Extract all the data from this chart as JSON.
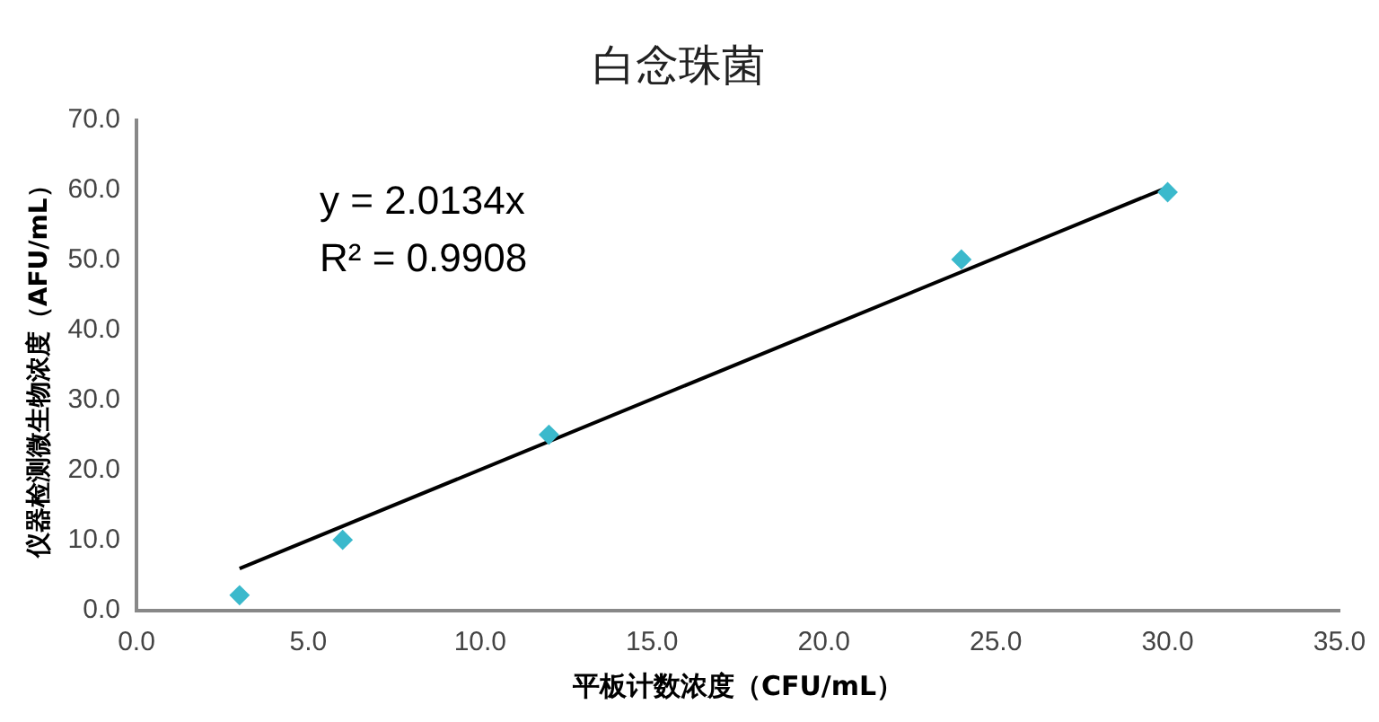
{
  "chart_data": {
    "type": "scatter",
    "title": "白念珠菌",
    "xlabel": "平板计数浓度（CFU/mL）",
    "ylabel": "仪器检测微生物浓度（AFU/mL）",
    "xlim": [
      0,
      35
    ],
    "xticks": [
      {
        "value": 0,
        "label": "0.0"
      },
      {
        "value": 5,
        "label": "5.0"
      },
      {
        "value": 10,
        "label": "10.0"
      },
      {
        "value": 15,
        "label": "15.0"
      },
      {
        "value": 20,
        "label": "20.0"
      },
      {
        "value": 25,
        "label": "25.0"
      },
      {
        "value": 30,
        "label": "30.0"
      },
      {
        "value": 35,
        "label": "35.0"
      }
    ],
    "ylim": [
      0,
      70
    ],
    "yticks": [
      {
        "value": 0,
        "label": "0.0"
      },
      {
        "value": 10,
        "label": "10.0"
      },
      {
        "value": 20,
        "label": "20.0"
      },
      {
        "value": 30,
        "label": "30.0"
      },
      {
        "value": 40,
        "label": "40.0"
      },
      {
        "value": 50,
        "label": "50.0"
      },
      {
        "value": 60,
        "label": "60.0"
      },
      {
        "value": 70,
        "label": "70.0"
      }
    ],
    "grid": false,
    "legend": false,
    "marker": "diamond",
    "series": [
      {
        "color": "#3bb9cc",
        "x": [
          3,
          6,
          12,
          24,
          30
        ],
        "values": [
          2.2,
          10.1,
          25.1,
          50.1,
          59.7
        ]
      },
      {
        "type": "line",
        "color": "#000000",
        "marker": "none",
        "x": [
          3,
          30
        ],
        "values": [
          6.0,
          60.4
        ]
      }
    ],
    "annotations": [
      "y = 2.0134x",
      "R² = 0.9908"
    ]
  }
}
